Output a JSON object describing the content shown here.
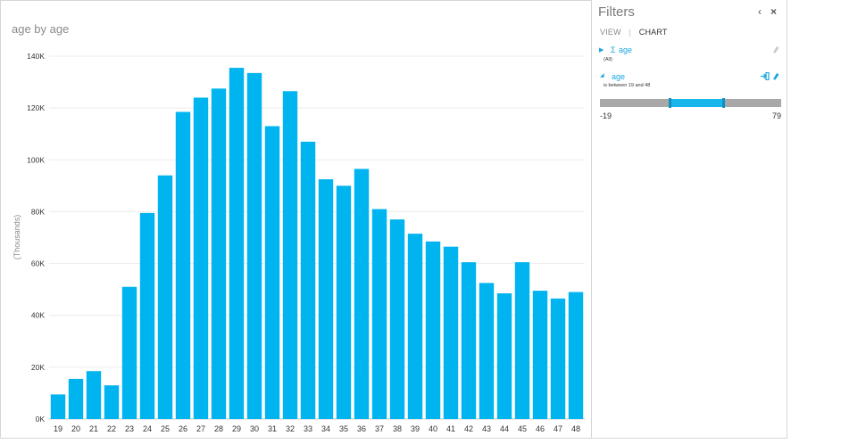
{
  "chart": {
    "title": "age by age",
    "y_axis_label": "(Thousands)"
  },
  "chart_data": {
    "type": "bar",
    "title": "age by age",
    "xlabel": "",
    "ylabel": "(Thousands)",
    "ylim": [
      0,
      140000
    ],
    "yticks": [
      0,
      20000,
      40000,
      60000,
      80000,
      100000,
      120000,
      140000
    ],
    "ytick_labels": [
      "0K",
      "20K",
      "40K",
      "60K",
      "80K",
      "100K",
      "120K",
      "140K"
    ],
    "grid": true,
    "bar_color": "#00b4ef",
    "categories": [
      "19",
      "20",
      "21",
      "22",
      "23",
      "24",
      "25",
      "26",
      "27",
      "28",
      "29",
      "30",
      "31",
      "32",
      "33",
      "34",
      "35",
      "36",
      "37",
      "38",
      "39",
      "40",
      "41",
      "42",
      "43",
      "44",
      "45",
      "46",
      "47",
      "48"
    ],
    "values": [
      9500,
      15500,
      18500,
      13000,
      51000,
      79500,
      94000,
      118500,
      124000,
      127500,
      135500,
      133500,
      113000,
      126500,
      107000,
      92500,
      90000,
      96500,
      81000,
      77000,
      71500,
      68500,
      66500,
      60500,
      52500,
      48500,
      60500,
      49500,
      46500,
      49000
    ]
  },
  "filters": {
    "title": "Filters",
    "collapse_icon": "chevron-left-icon",
    "collapse_glyph": "‹",
    "close_icon": "close-icon",
    "close_glyph": "×",
    "tabs": {
      "view": "VIEW",
      "separator": "|",
      "chart": "CHART"
    },
    "items": [
      {
        "expand_glyph": "▶",
        "sigma": "Σ",
        "field": "age",
        "summary": "(All)",
        "clear_icon": "eraser-icon"
      },
      {
        "expand_glyph": "◢",
        "field": "age",
        "summary": "is between 19 and 48",
        "pin_icon": "pin-to-card-icon",
        "clear_icon": "eraser-icon"
      }
    ],
    "slider": {
      "min_label": "-19",
      "max_label": "79",
      "range_min": -19,
      "range_max": 79,
      "selected_low": 19,
      "selected_high": 48
    }
  },
  "colors": {
    "accent": "#00b4ef",
    "track": "#a8a8a8",
    "link": "#1aa7e0"
  }
}
